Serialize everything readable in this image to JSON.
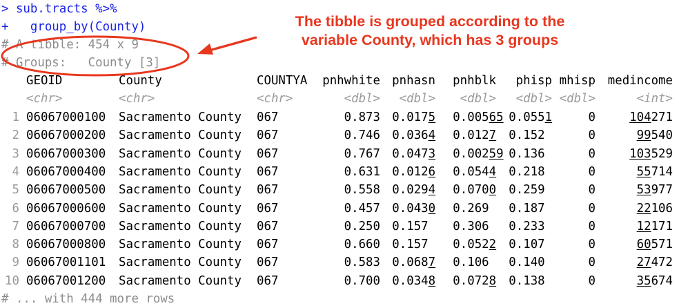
{
  "console": {
    "prompt_line": "> sub.tracts %>%",
    "continue_line": "+   group_by(County)",
    "tibble_line": "# A tibble: 454 x 9",
    "groups_line": "# Groups:   County [3]",
    "footer_line": "# ... with 444 more rows"
  },
  "columns": [
    {
      "name": "GEOID",
      "type": "<chr>"
    },
    {
      "name": "County",
      "type": "<chr>"
    },
    {
      "name": "COUNTYA",
      "type": "<chr>"
    },
    {
      "name": "pnhwhite",
      "type": "<dbl>"
    },
    {
      "name": "pnhasn",
      "type": "<dbl>"
    },
    {
      "name": "pnhblk",
      "type": "<dbl>"
    },
    {
      "name": "phisp",
      "type": "<dbl>"
    },
    {
      "name": "mhisp",
      "type": "<dbl>"
    },
    {
      "name": "medincome",
      "type": "<int>"
    }
  ],
  "rows": [
    {
      "idx": "1",
      "geoid": "06067000100",
      "county": "Sacramento County",
      "countya": "067",
      "pnhwhite": "0.873",
      "pnhasn": [
        "0.017",
        "5"
      ],
      "pnhblk": [
        "0.005",
        "65"
      ],
      "phisp": [
        "0.055",
        "1"
      ],
      "mhisp": "0",
      "medincome": [
        "104",
        "271"
      ]
    },
    {
      "idx": "2",
      "geoid": "06067000200",
      "county": "Sacramento County",
      "countya": "067",
      "pnhwhite": "0.746",
      "pnhasn": [
        "0.036",
        "4"
      ],
      "pnhblk": [
        "0.012",
        "7"
      ],
      "phisp": [
        "0.152",
        ""
      ],
      "mhisp": "0",
      "medincome": [
        "99",
        "540"
      ]
    },
    {
      "idx": "3",
      "geoid": "06067000300",
      "county": "Sacramento County",
      "countya": "067",
      "pnhwhite": "0.767",
      "pnhasn": [
        "0.047",
        "3"
      ],
      "pnhblk": [
        "0.002",
        "59"
      ],
      "phisp": [
        "0.136",
        ""
      ],
      "mhisp": "0",
      "medincome": [
        "103",
        "529"
      ]
    },
    {
      "idx": "4",
      "geoid": "06067000400",
      "county": "Sacramento County",
      "countya": "067",
      "pnhwhite": "0.631",
      "pnhasn": [
        "0.012",
        "6"
      ],
      "pnhblk": [
        "0.054",
        "4"
      ],
      "phisp": [
        "0.218",
        ""
      ],
      "mhisp": "0",
      "medincome": [
        "55",
        "714"
      ]
    },
    {
      "idx": "5",
      "geoid": "06067000500",
      "county": "Sacramento County",
      "countya": "067",
      "pnhwhite": "0.558",
      "pnhasn": [
        "0.029",
        "4"
      ],
      "pnhblk": [
        "0.070",
        "0"
      ],
      "phisp": [
        "0.259",
        ""
      ],
      "mhisp": "0",
      "medincome": [
        "53",
        "977"
      ]
    },
    {
      "idx": "6",
      "geoid": "06067000600",
      "county": "Sacramento County",
      "countya": "067",
      "pnhwhite": "0.457",
      "pnhasn": [
        "0.043",
        "0"
      ],
      "pnhblk": [
        "0.269",
        ""
      ],
      "phisp": [
        "0.187",
        ""
      ],
      "mhisp": "0",
      "medincome": [
        "22",
        "106"
      ]
    },
    {
      "idx": "7",
      "geoid": "06067000700",
      "county": "Sacramento County",
      "countya": "067",
      "pnhwhite": "0.250",
      "pnhasn": [
        "0.157",
        ""
      ],
      "pnhblk": [
        "0.306",
        ""
      ],
      "phisp": [
        "0.233",
        ""
      ],
      "mhisp": "0",
      "medincome": [
        "12",
        "171"
      ]
    },
    {
      "idx": "8",
      "geoid": "06067000800",
      "county": "Sacramento County",
      "countya": "067",
      "pnhwhite": "0.660",
      "pnhasn": [
        "0.157",
        ""
      ],
      "pnhblk": [
        "0.052",
        "2"
      ],
      "phisp": [
        "0.107",
        ""
      ],
      "mhisp": "0",
      "medincome": [
        "60",
        "571"
      ]
    },
    {
      "idx": "9",
      "geoid": "06067001101",
      "county": "Sacramento County",
      "countya": "067",
      "pnhwhite": "0.583",
      "pnhasn": [
        "0.068",
        "7"
      ],
      "pnhblk": [
        "0.106",
        ""
      ],
      "phisp": [
        "0.140",
        ""
      ],
      "mhisp": "0",
      "medincome": [
        "27",
        "472"
      ]
    },
    {
      "idx": "10",
      "geoid": "06067001200",
      "county": "Sacramento County",
      "countya": "067",
      "pnhwhite": "0.700",
      "pnhasn": [
        "0.034",
        "8"
      ],
      "pnhblk": [
        "0.072",
        "8"
      ],
      "phisp": [
        "0.138",
        ""
      ],
      "mhisp": "0",
      "medincome": [
        "35",
        "674"
      ]
    }
  ],
  "annotation": {
    "line1": "The tibble is grouped according to the",
    "line2": "variable County, which has 3 groups",
    "color": "#e8371f"
  }
}
